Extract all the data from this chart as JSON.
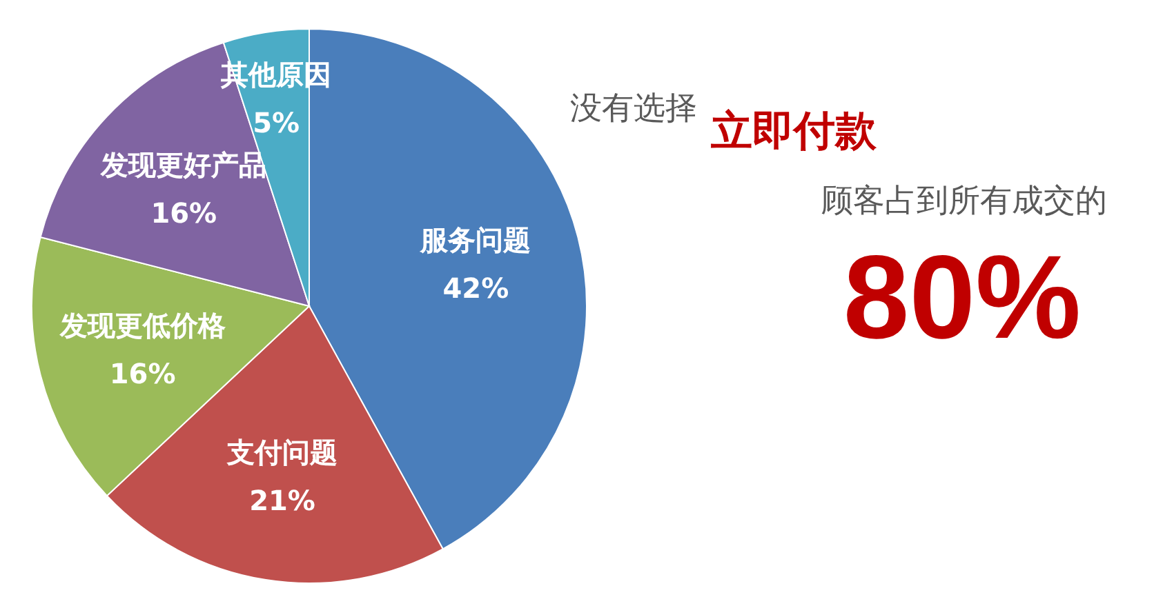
{
  "chart_data": {
    "type": "pie",
    "categories": [
      "服务问题",
      "支付问题",
      "发现更低价格",
      "发现更好产品",
      "其他原因"
    ],
    "values": [
      42,
      21,
      16,
      16,
      5
    ],
    "colors": [
      "#4a7ebb",
      "#c0504d",
      "#9bbb59",
      "#8064a2",
      "#4bacc6"
    ],
    "value_labels": [
      "42%",
      "21%",
      "16%",
      "16%",
      "5%"
    ],
    "annotations": [
      "没有选择",
      "立即付款",
      "顾客占到所有成交的",
      "80%"
    ]
  }
}
